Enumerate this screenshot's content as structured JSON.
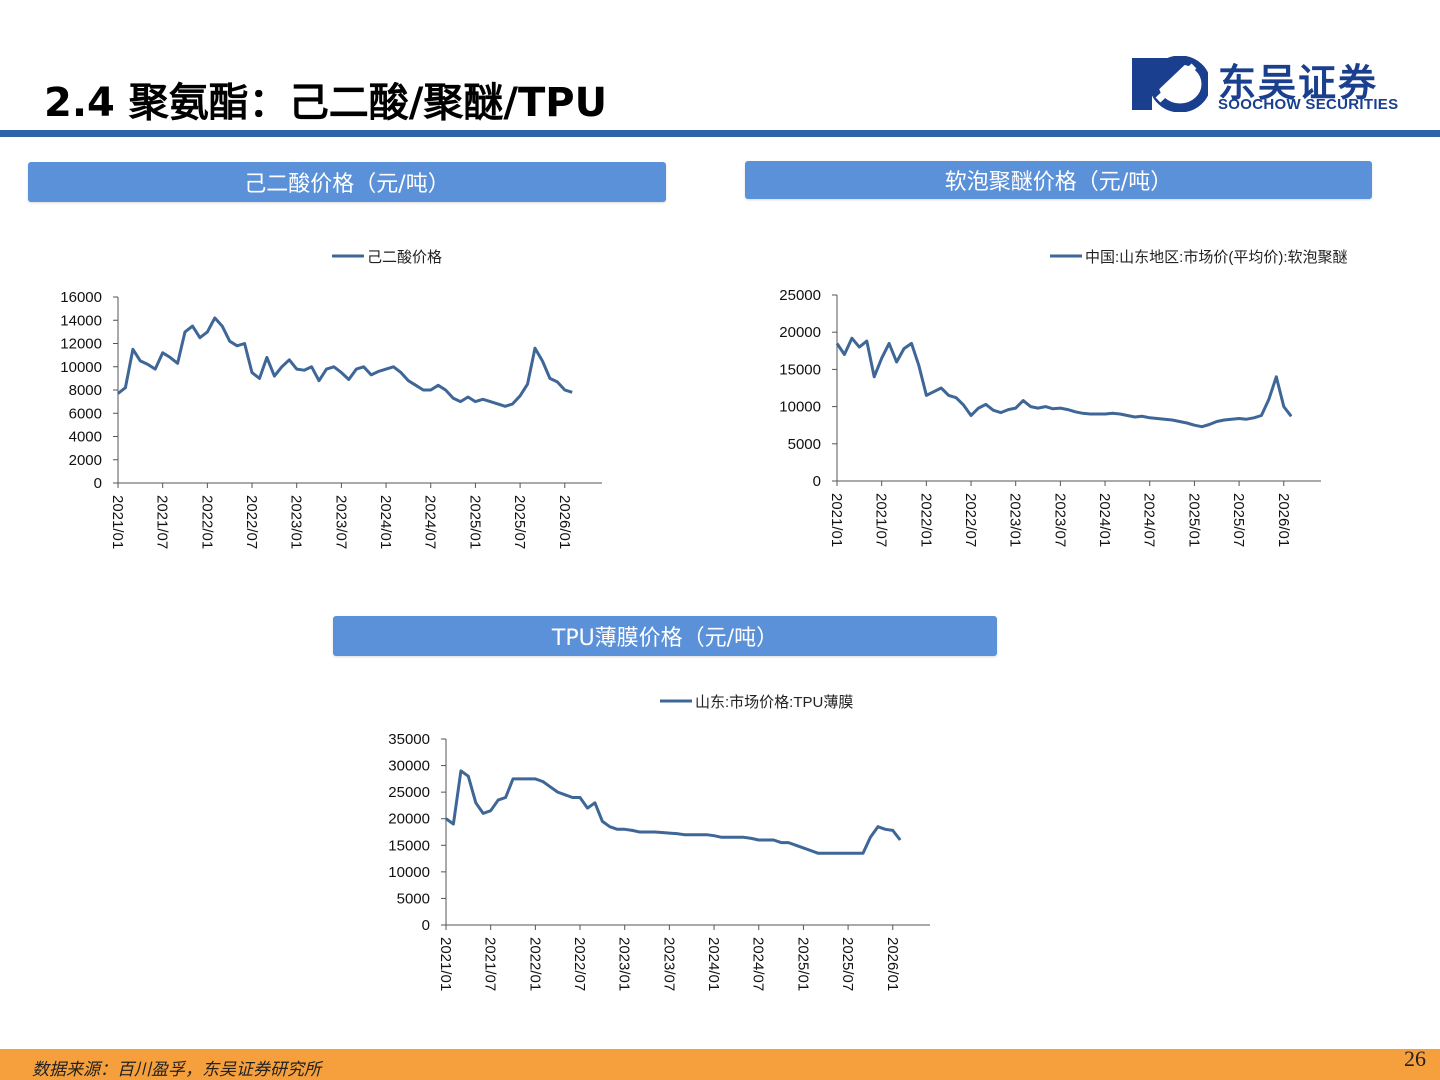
{
  "header": {
    "title": "2.4 聚氨酯：己二酸/聚醚/TPU",
    "logo_cn": "东吴证券",
    "logo_en": "SOOCHOW SECURITIES",
    "brand_color": "#1a3f8f",
    "rule_color": "#2f65a8"
  },
  "banners": {
    "adipic": "己二酸价格（元/吨）",
    "polyether": "软泡聚醚价格（元/吨）",
    "tpu": "TPU薄膜价格（元/吨）",
    "banner_color": "#5b91d9"
  },
  "footer": {
    "source": "数据来源：百川盈孚，东吴证券研究所",
    "page_number": "26",
    "bar_color": "#f5a03c"
  },
  "chart_data": [
    {
      "type": "line",
      "title": "",
      "xlabel": "",
      "ylabel": "",
      "legend_position": "top",
      "ylim": [
        0,
        16000
      ],
      "yticks": [
        "0",
        "2000",
        "4000",
        "6000",
        "8000",
        "10000",
        "12000",
        "14000",
        "16000"
      ],
      "xlim": [
        "2021/01",
        "2026/06"
      ],
      "xticks": [
        "2021/01",
        "2021/07",
        "2022/01",
        "2022/07",
        "2023/01",
        "2023/07",
        "2024/01",
        "2024/07",
        "2025/01",
        "2025/07",
        "2026/01"
      ],
      "series": [
        {
          "name": "己二酸价格",
          "color": "#3e6696",
          "points": [
            [
              "2021/01",
              7700
            ],
            [
              "2021/02",
              8200
            ],
            [
              "2021/03",
              11500
            ],
            [
              "2021/04",
              10500
            ],
            [
              "2021/05",
              10200
            ],
            [
              "2021/06",
              9800
            ],
            [
              "2021/07",
              11200
            ],
            [
              "2021/08",
              10800
            ],
            [
              "2021/09",
              10300
            ],
            [
              "2021/10",
              13000
            ],
            [
              "2021/11",
              13500
            ],
            [
              "2021/12",
              12500
            ],
            [
              "2022/01",
              13000
            ],
            [
              "2022/02",
              14200
            ],
            [
              "2022/03",
              13500
            ],
            [
              "2022/04",
              12200
            ],
            [
              "2022/05",
              11800
            ],
            [
              "2022/06",
              12000
            ],
            [
              "2022/07",
              9500
            ],
            [
              "2022/08",
              9000
            ],
            [
              "2022/09",
              10800
            ],
            [
              "2022/10",
              9200
            ],
            [
              "2022/11",
              10000
            ],
            [
              "2022/12",
              10600
            ],
            [
              "2023/01",
              9800
            ],
            [
              "2023/02",
              9700
            ],
            [
              "2023/03",
              10000
            ],
            [
              "2023/04",
              8800
            ],
            [
              "2023/05",
              9800
            ],
            [
              "2023/06",
              10000
            ],
            [
              "2023/07",
              9500
            ],
            [
              "2023/08",
              8900
            ],
            [
              "2023/09",
              9800
            ],
            [
              "2023/10",
              10000
            ],
            [
              "2023/11",
              9300
            ],
            [
              "2023/12",
              9600
            ],
            [
              "2024/01",
              9800
            ],
            [
              "2024/02",
              10000
            ],
            [
              "2024/03",
              9500
            ],
            [
              "2024/04",
              8800
            ],
            [
              "2024/05",
              8400
            ],
            [
              "2024/06",
              8000
            ],
            [
              "2024/07",
              8000
            ],
            [
              "2024/08",
              8400
            ],
            [
              "2024/09",
              8000
            ],
            [
              "2024/10",
              7300
            ],
            [
              "2024/11",
              7000
            ],
            [
              "2024/12",
              7400
            ],
            [
              "2025/01",
              7000
            ],
            [
              "2025/02",
              7200
            ],
            [
              "2025/03",
              7000
            ],
            [
              "2025/04",
              6800
            ],
            [
              "2025/05",
              6600
            ],
            [
              "2025/06",
              6800
            ],
            [
              "2025/07",
              7500
            ],
            [
              "2025/08",
              8500
            ],
            [
              "2025/09",
              11600
            ],
            [
              "2025/10",
              10500
            ],
            [
              "2025/11",
              9000
            ],
            [
              "2025/12",
              8700
            ],
            [
              "2026/01",
              8000
            ],
            [
              "2026/02",
              7800
            ]
          ]
        }
      ]
    },
    {
      "type": "line",
      "title": "",
      "xlabel": "",
      "ylabel": "",
      "legend_position": "top",
      "ylim": [
        0,
        25000
      ],
      "yticks": [
        "0",
        "5000",
        "10000",
        "15000",
        "20000",
        "25000"
      ],
      "xlim": [
        "2021/01",
        "2026/06"
      ],
      "xticks": [
        "2021/01",
        "2021/07",
        "2022/01",
        "2022/07",
        "2023/01",
        "2023/07",
        "2024/01",
        "2024/07",
        "2025/01",
        "2025/07",
        "2026/01"
      ],
      "series": [
        {
          "name": "中国:山东地区:市场价(平均价):软泡聚醚",
          "color": "#3e6696",
          "points": [
            [
              "2021/01",
              18500
            ],
            [
              "2021/02",
              17000
            ],
            [
              "2021/03",
              19200
            ],
            [
              "2021/04",
              18000
            ],
            [
              "2021/05",
              18800
            ],
            [
              "2021/06",
              14000
            ],
            [
              "2021/07",
              16500
            ],
            [
              "2021/08",
              18500
            ],
            [
              "2021/09",
              16000
            ],
            [
              "2021/10",
              17800
            ],
            [
              "2021/11",
              18500
            ],
            [
              "2021/12",
              15500
            ],
            [
              "2022/01",
              11500
            ],
            [
              "2022/02",
              12000
            ],
            [
              "2022/03",
              12500
            ],
            [
              "2022/04",
              11500
            ],
            [
              "2022/05",
              11200
            ],
            [
              "2022/06",
              10200
            ],
            [
              "2022/07",
              8800
            ],
            [
              "2022/08",
              9800
            ],
            [
              "2022/09",
              10300
            ],
            [
              "2022/10",
              9500
            ],
            [
              "2022/11",
              9200
            ],
            [
              "2022/12",
              9600
            ],
            [
              "2023/01",
              9800
            ],
            [
              "2023/02",
              10800
            ],
            [
              "2023/03",
              10000
            ],
            [
              "2023/04",
              9800
            ],
            [
              "2023/05",
              10000
            ],
            [
              "2023/06",
              9700
            ],
            [
              "2023/07",
              9800
            ],
            [
              "2023/08",
              9600
            ],
            [
              "2023/09",
              9300
            ],
            [
              "2023/10",
              9100
            ],
            [
              "2023/11",
              9000
            ],
            [
              "2023/12",
              9000
            ],
            [
              "2024/01",
              9000
            ],
            [
              "2024/02",
              9100
            ],
            [
              "2024/03",
              9000
            ],
            [
              "2024/04",
              8800
            ],
            [
              "2024/05",
              8600
            ],
            [
              "2024/06",
              8700
            ],
            [
              "2024/07",
              8500
            ],
            [
              "2024/08",
              8400
            ],
            [
              "2024/09",
              8300
            ],
            [
              "2024/10",
              8200
            ],
            [
              "2024/11",
              8000
            ],
            [
              "2024/12",
              7800
            ],
            [
              "2025/01",
              7500
            ],
            [
              "2025/02",
              7300
            ],
            [
              "2025/03",
              7600
            ],
            [
              "2025/04",
              8000
            ],
            [
              "2025/05",
              8200
            ],
            [
              "2025/06",
              8300
            ],
            [
              "2025/07",
              8400
            ],
            [
              "2025/08",
              8300
            ],
            [
              "2025/09",
              8500
            ],
            [
              "2025/10",
              8800
            ],
            [
              "2025/11",
              11000
            ],
            [
              "2025/12",
              14000
            ],
            [
              "2026/01",
              10000
            ],
            [
              "2026/02",
              8700
            ]
          ]
        }
      ]
    },
    {
      "type": "line",
      "title": "",
      "xlabel": "",
      "ylabel": "",
      "legend_position": "top",
      "ylim": [
        0,
        35000
      ],
      "yticks": [
        "0",
        "5000",
        "10000",
        "15000",
        "20000",
        "25000",
        "30000",
        "35000"
      ],
      "xlim": [
        "2021/01",
        "2026/06"
      ],
      "xticks": [
        "2021/01",
        "2021/07",
        "2022/01",
        "2022/07",
        "2023/01",
        "2023/07",
        "2024/01",
        "2024/07",
        "2025/01",
        "2025/07",
        "2026/01"
      ],
      "series": [
        {
          "name": "山东:市场价格:TPU薄膜",
          "color": "#3e6696",
          "points": [
            [
              "2021/01",
              20000
            ],
            [
              "2021/02",
              19000
            ],
            [
              "2021/03",
              29000
            ],
            [
              "2021/04",
              28000
            ],
            [
              "2021/05",
              23000
            ],
            [
              "2021/06",
              21000
            ],
            [
              "2021/07",
              21500
            ],
            [
              "2021/08",
              23500
            ],
            [
              "2021/09",
              24000
            ],
            [
              "2021/10",
              27500
            ],
            [
              "2021/11",
              27500
            ],
            [
              "2021/12",
              27500
            ],
            [
              "2022/01",
              27500
            ],
            [
              "2022/02",
              27000
            ],
            [
              "2022/03",
              26000
            ],
            [
              "2022/04",
              25000
            ],
            [
              "2022/05",
              24500
            ],
            [
              "2022/06",
              24000
            ],
            [
              "2022/07",
              24000
            ],
            [
              "2022/08",
              22000
            ],
            [
              "2022/09",
              23000
            ],
            [
              "2022/10",
              19500
            ],
            [
              "2022/11",
              18500
            ],
            [
              "2022/12",
              18000
            ],
            [
              "2023/01",
              18000
            ],
            [
              "2023/02",
              17800
            ],
            [
              "2023/03",
              17500
            ],
            [
              "2023/04",
              17500
            ],
            [
              "2023/05",
              17500
            ],
            [
              "2023/06",
              17400
            ],
            [
              "2023/07",
              17300
            ],
            [
              "2023/08",
              17200
            ],
            [
              "2023/09",
              17000
            ],
            [
              "2023/10",
              17000
            ],
            [
              "2023/11",
              17000
            ],
            [
              "2023/12",
              17000
            ],
            [
              "2024/01",
              16800
            ],
            [
              "2024/02",
              16500
            ],
            [
              "2024/03",
              16500
            ],
            [
              "2024/04",
              16500
            ],
            [
              "2024/05",
              16500
            ],
            [
              "2024/06",
              16300
            ],
            [
              "2024/07",
              16000
            ],
            [
              "2024/08",
              16000
            ],
            [
              "2024/09",
              16000
            ],
            [
              "2024/10",
              15500
            ],
            [
              "2024/11",
              15500
            ],
            [
              "2024/12",
              15000
            ],
            [
              "2025/01",
              14500
            ],
            [
              "2025/02",
              14000
            ],
            [
              "2025/03",
              13500
            ],
            [
              "2025/04",
              13500
            ],
            [
              "2025/05",
              13500
            ],
            [
              "2025/06",
              13500
            ],
            [
              "2025/07",
              13500
            ],
            [
              "2025/08",
              13500
            ],
            [
              "2025/09",
              13500
            ],
            [
              "2025/10",
              16500
            ],
            [
              "2025/11",
              18500
            ],
            [
              "2025/12",
              18000
            ],
            [
              "2026/01",
              17800
            ],
            [
              "2026/02",
              16000
            ]
          ]
        }
      ]
    }
  ]
}
